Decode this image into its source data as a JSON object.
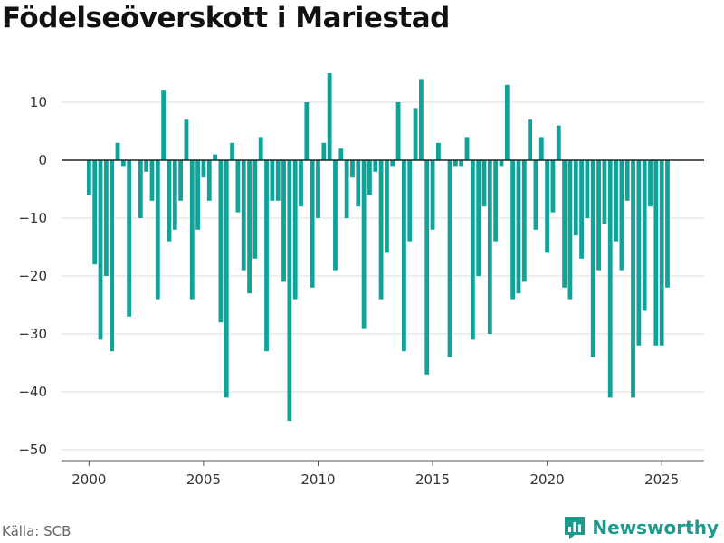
{
  "chart_data": {
    "type": "bar",
    "title": "Födelseöverskott i Mariestad",
    "xlabel": "",
    "ylabel": "",
    "ylim": [
      -52,
      16
    ],
    "xlim": [
      1998.8,
      2026.85
    ],
    "x_ticks": [
      2000,
      2005,
      2010,
      2015,
      2020,
      2025
    ],
    "y_ticks": [
      10,
      0,
      -10,
      -20,
      -30,
      -40,
      -50
    ],
    "grid": true,
    "bar_color": "#0fa39a",
    "x": [
      "2000-01",
      "2000-04",
      "2000-07",
      "2000-10",
      "2001-01",
      "2001-04",
      "2001-07",
      "2001-10",
      "2002-01",
      "2002-04",
      "2002-07",
      "2002-10",
      "2003-01",
      "2003-04",
      "2003-07",
      "2003-10",
      "2004-01",
      "2004-04",
      "2004-07",
      "2004-10",
      "2005-01",
      "2005-04",
      "2005-07",
      "2005-10",
      "2006-01",
      "2006-04",
      "2006-07",
      "2006-10",
      "2007-01",
      "2007-04",
      "2007-07",
      "2007-10",
      "2008-01",
      "2008-04",
      "2008-07",
      "2008-10",
      "2009-01",
      "2009-04",
      "2009-07",
      "2009-10",
      "2010-01",
      "2010-04",
      "2010-07",
      "2010-10",
      "2011-01",
      "2011-04",
      "2011-07",
      "2011-10",
      "2012-01",
      "2012-04",
      "2012-07",
      "2012-10",
      "2013-01",
      "2013-04",
      "2013-07",
      "2013-10",
      "2014-01",
      "2014-04",
      "2014-07",
      "2014-10",
      "2015-01",
      "2015-04",
      "2015-07",
      "2015-10",
      "2016-01",
      "2016-04",
      "2016-07",
      "2016-10",
      "2017-01",
      "2017-04",
      "2017-07",
      "2017-10",
      "2018-01",
      "2018-04",
      "2018-07",
      "2018-10",
      "2019-01",
      "2019-04",
      "2019-07",
      "2019-10",
      "2020-01",
      "2020-04",
      "2020-07",
      "2020-10",
      "2021-01",
      "2021-04",
      "2021-07",
      "2021-10",
      "2022-01",
      "2022-04",
      "2022-07",
      "2022-10",
      "2023-01",
      "2023-04",
      "2023-07",
      "2023-10",
      "2024-01",
      "2024-04",
      "2024-07",
      "2024-10",
      "2025-01",
      "2025-04"
    ],
    "values": [
      -6,
      -18,
      -31,
      -20,
      -33,
      3,
      -1,
      -27,
      0,
      -10,
      -2,
      -7,
      -24,
      12,
      -14,
      -12,
      -7,
      7,
      -24,
      -12,
      -3,
      -7,
      1,
      -28,
      -41,
      3,
      -9,
      -19,
      -23,
      -17,
      4,
      -33,
      -7,
      -7,
      -21,
      -45,
      -24,
      -8,
      10,
      -22,
      -10,
      3,
      15,
      -19,
      2,
      -10,
      -3,
      -8,
      -29,
      -6,
      -2,
      -24,
      -16,
      -1,
      10,
      -33,
      -14,
      9,
      14,
      -37,
      -12,
      3,
      0,
      -34,
      -1,
      -1,
      4,
      -31,
      -20,
      -8,
      -30,
      -14,
      -1,
      13,
      -24,
      -23,
      -21,
      7,
      -12,
      4,
      -16,
      -9,
      6,
      -22,
      -24,
      -13,
      -17,
      -10,
      -34,
      -19,
      -11,
      -41,
      -14,
      -19,
      -7,
      -41,
      -32,
      -26,
      -8,
      -32,
      -32,
      -22
    ]
  },
  "source": "Källa: SCB",
  "brand": {
    "name": "Newsworthy",
    "color": "#1d9a8c"
  },
  "icons": {
    "brand_logo": "newsworthy-logo-icon"
  }
}
